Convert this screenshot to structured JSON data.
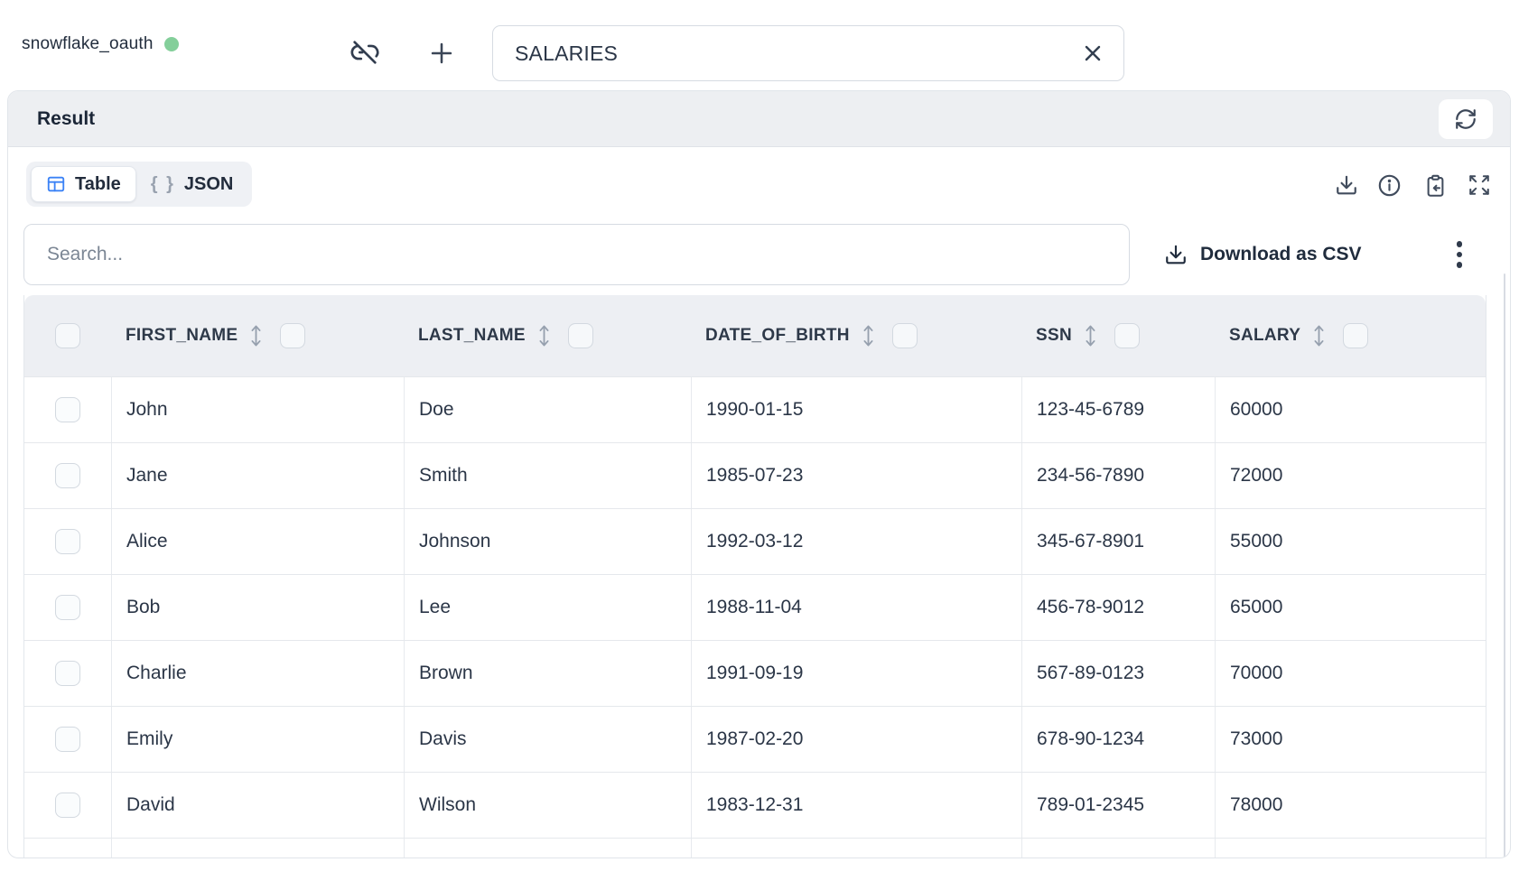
{
  "connection": {
    "name": "snowflake_oauth",
    "status": "connected",
    "status_color": "#84cf9a"
  },
  "topbar": {
    "table_name_input": {
      "value": "SALARIES"
    }
  },
  "result_panel": {
    "title": "Result"
  },
  "view_toggle": {
    "tabs": [
      {
        "label": "Table",
        "icon": "table-grid-icon",
        "active": true
      },
      {
        "label": "JSON",
        "icon": "braces-icon",
        "active": false
      }
    ]
  },
  "toolbar_icons": [
    "download-icon",
    "info-icon",
    "clipboard-paste-icon",
    "expand-icon"
  ],
  "search": {
    "placeholder": "Search...",
    "value": ""
  },
  "actions": {
    "download_csv_label": "Download as CSV",
    "more_options_icon": "kebab-menu-icon",
    "refresh_icon": "refresh-icon",
    "unlink_icon": "link-off-icon",
    "new_tab_icon": "plus-icon",
    "clear_icon": "x-icon",
    "sort_icon": "sort-up-down-icon"
  },
  "colors": {
    "accent_blue": "#3b82f6",
    "status_green": "#84cf9a",
    "header_bg": "#edeff2",
    "border": "#e3e7ec",
    "text_dark": "#222d3d",
    "icon_gray": "#414c5d"
  },
  "table": {
    "columns": [
      "FIRST_NAME",
      "LAST_NAME",
      "DATE_OF_BIRTH",
      "SSN",
      "SALARY"
    ],
    "rows": [
      [
        "John",
        "Doe",
        "1990-01-15",
        "123-45-6789",
        "60000"
      ],
      [
        "Jane",
        "Smith",
        "1985-07-23",
        "234-56-7890",
        "72000"
      ],
      [
        "Alice",
        "Johnson",
        "1992-03-12",
        "345-67-8901",
        "55000"
      ],
      [
        "Bob",
        "Lee",
        "1988-11-04",
        "456-78-9012",
        "65000"
      ],
      [
        "Charlie",
        "Brown",
        "1991-09-19",
        "567-89-0123",
        "70000"
      ],
      [
        "Emily",
        "Davis",
        "1987-02-20",
        "678-90-1234",
        "73000"
      ],
      [
        "David",
        "Wilson",
        "1983-12-31",
        "789-01-2345",
        "78000"
      ]
    ],
    "partial_row_visible": true
  }
}
